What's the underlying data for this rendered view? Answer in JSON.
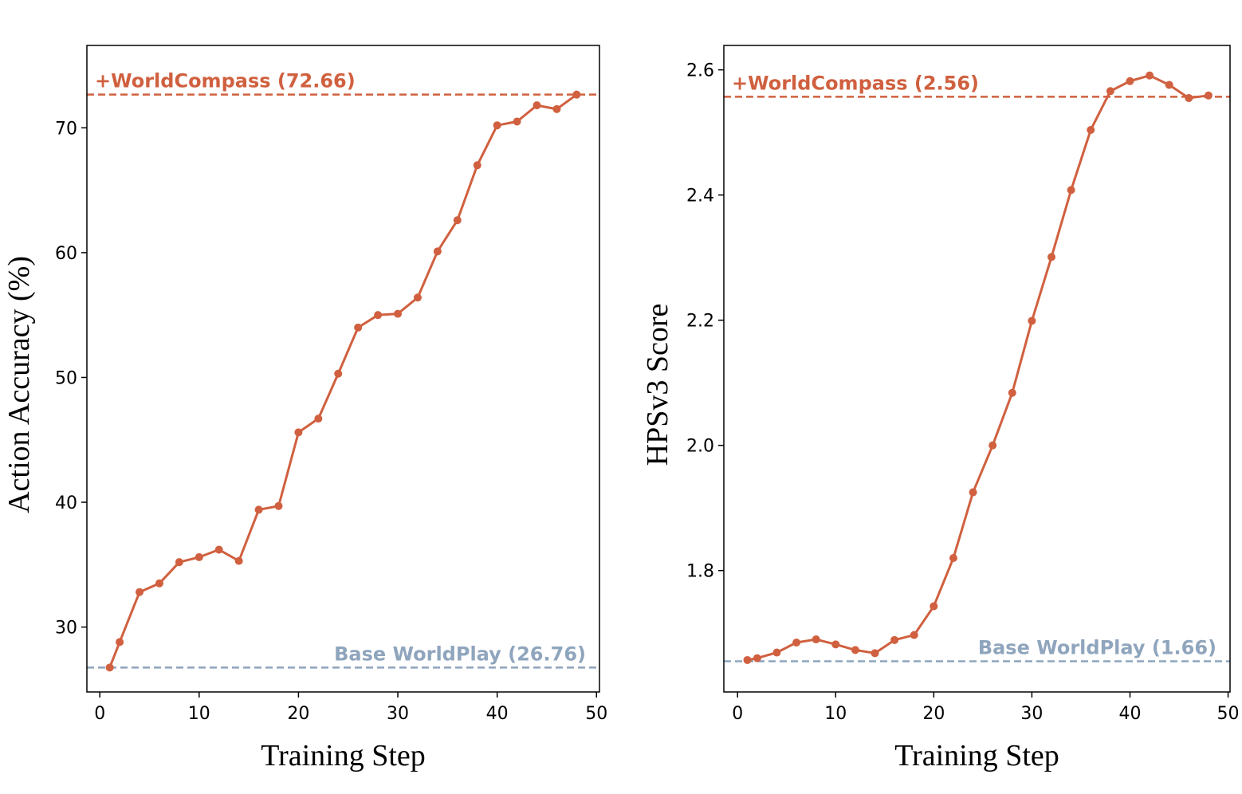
{
  "colors": {
    "series": "#d0603f",
    "base": "#8fa5bd"
  },
  "chart_data": [
    {
      "type": "line",
      "title": "",
      "xlabel": "Training Step",
      "ylabel": "Action Accuracy (%)",
      "xlim": [
        -1.3,
        50.3
      ],
      "ylim": [
        24.8,
        76.6
      ],
      "xticks": [
        0,
        10,
        20,
        30,
        40,
        50
      ],
      "yticks": [
        30,
        40,
        50,
        60,
        70
      ],
      "grid": false,
      "x": [
        1,
        2,
        4,
        6,
        8,
        10,
        12,
        14,
        16,
        18,
        20,
        22,
        24,
        26,
        28,
        30,
        32,
        34,
        36,
        38,
        40,
        42,
        44,
        46,
        48
      ],
      "series": [
        {
          "name": "WorldCompass training",
          "values": [
            26.76,
            28.8,
            32.8,
            33.5,
            35.2,
            35.6,
            36.2,
            35.3,
            39.4,
            39.7,
            45.6,
            46.7,
            50.3,
            54.0,
            55.0,
            55.1,
            56.4,
            60.1,
            62.6,
            67.0,
            70.2,
            70.5,
            71.8,
            71.5,
            72.66
          ]
        }
      ],
      "reference_lines": [
        {
          "label": "+WorldCompass (72.66)",
          "value": 72.66,
          "color": "series",
          "label_position": "top-left"
        },
        {
          "label": "Base WorldPlay (26.76)",
          "value": 26.76,
          "color": "base",
          "label_position": "bottom-right"
        }
      ]
    },
    {
      "type": "line",
      "title": "",
      "xlabel": "Training Step",
      "ylabel": "HPSv3 Score",
      "xlim": [
        -1.4,
        50.2
      ],
      "ylim": [
        1.606,
        2.639
      ],
      "xticks": [
        0,
        10,
        20,
        30,
        40,
        50
      ],
      "yticks": [
        1.8,
        2.0,
        2.2,
        2.4,
        2.6
      ],
      "ytick_labels": [
        "1.8",
        "2.0",
        "2.2",
        "2.4",
        "2.6"
      ],
      "grid": false,
      "x": [
        1,
        2,
        4,
        6,
        8,
        10,
        12,
        14,
        16,
        18,
        20,
        22,
        24,
        26,
        28,
        30,
        32,
        34,
        36,
        38,
        40,
        42,
        44,
        46,
        48
      ],
      "series": [
        {
          "name": "WorldCompass training",
          "values": [
            1.657,
            1.66,
            1.669,
            1.685,
            1.69,
            1.682,
            1.673,
            1.668,
            1.689,
            1.697,
            1.743,
            1.82,
            1.925,
            2.0,
            2.084,
            2.199,
            2.301,
            2.408,
            2.504,
            2.566,
            2.582,
            2.591,
            2.576,
            2.555,
            2.559
          ]
        }
      ],
      "reference_lines": [
        {
          "label": "+WorldCompass (2.56)",
          "value": 2.557,
          "color": "series",
          "label_position": "top-left"
        },
        {
          "label": "Base WorldPlay (1.66)",
          "value": 1.655,
          "color": "base",
          "label_position": "bottom-right"
        }
      ]
    }
  ]
}
